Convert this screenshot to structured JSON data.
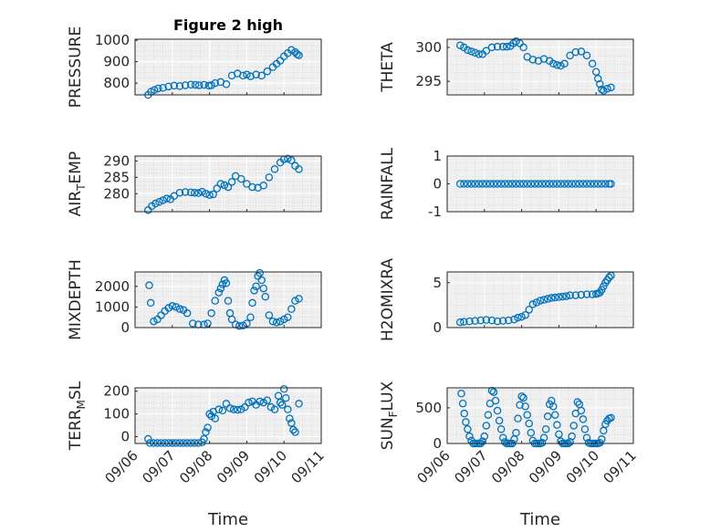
{
  "figure": {
    "title": "Figure 2 high",
    "xlabel": "Time"
  },
  "colors": {
    "marker": "#0072BD",
    "axes_bg": "#F0F0F0",
    "axis": "#262626"
  },
  "chart_data": [
    {
      "type": "scatter",
      "ylabel": "PRESSURE",
      "title": "Figure 2 high",
      "yticks": [
        800,
        900,
        1000
      ],
      "ylim": [
        745,
        1005
      ],
      "xlim": [
        "09/06",
        "09/11"
      ],
      "x_day": [
        0.35,
        0.43,
        0.52,
        0.62,
        0.75,
        0.9,
        1.05,
        1.2,
        1.35,
        1.5,
        1.62,
        1.72,
        1.85,
        1.98,
        2.05,
        2.15,
        2.3,
        2.45,
        2.6,
        2.75,
        2.9,
        3.0,
        3.1,
        3.25,
        3.4,
        3.55,
        3.7,
        3.8,
        3.9,
        4.0,
        4.1,
        4.2,
        4.3,
        4.35,
        4.4
      ],
      "y": [
        745,
        760,
        768,
        775,
        778,
        784,
        788,
        786,
        790,
        793,
        792,
        790,
        792,
        788,
        790,
        800,
        805,
        795,
        835,
        845,
        835,
        840,
        832,
        840,
        835,
        855,
        875,
        890,
        905,
        925,
        940,
        955,
        945,
        935,
        930
      ]
    },
    {
      "type": "scatter",
      "ylabel": "THETA",
      "yticks": [
        295,
        300
      ],
      "ylim": [
        293,
        301.2
      ],
      "xlim": [
        "09/06",
        "09/11"
      ],
      "x_day": [
        0.35,
        0.45,
        0.55,
        0.65,
        0.75,
        0.85,
        0.95,
        1.05,
        1.2,
        1.35,
        1.5,
        1.6,
        1.7,
        1.78,
        1.85,
        1.95,
        2.05,
        2.15,
        2.3,
        2.45,
        2.6,
        2.75,
        2.85,
        2.95,
        3.05,
        3.15,
        3.3,
        3.45,
        3.6,
        3.75,
        3.9,
        4.0,
        4.05,
        4.1,
        4.15,
        4.2,
        4.3,
        4.4
      ],
      "y": [
        300.3,
        300.0,
        299.6,
        299.4,
        299.2,
        299.0,
        299.0,
        299.5,
        300.0,
        300.1,
        300.1,
        300.1,
        300.2,
        300.6,
        300.9,
        300.6,
        300.0,
        298.6,
        298.2,
        298.0,
        298.3,
        298.0,
        297.6,
        297.4,
        297.3,
        297.6,
        298.8,
        299.3,
        299.4,
        298.8,
        297.6,
        296.4,
        295.4,
        294.6,
        293.8,
        293.6,
        293.9,
        294.1
      ]
    },
    {
      "type": "scatter",
      "ylabel": "AIR_TEMP",
      "yticks": [
        280,
        285,
        290
      ],
      "ylim": [
        274.5,
        291.5
      ],
      "xlim": [
        "09/06",
        "09/11"
      ],
      "x_day": [
        0.35,
        0.45,
        0.55,
        0.65,
        0.75,
        0.85,
        0.95,
        1.05,
        1.2,
        1.35,
        1.5,
        1.6,
        1.7,
        1.8,
        1.9,
        2.0,
        2.1,
        2.2,
        2.3,
        2.4,
        2.5,
        2.6,
        2.7,
        2.85,
        3.0,
        3.15,
        3.3,
        3.45,
        3.6,
        3.75,
        3.9,
        4.0,
        4.1,
        4.2,
        4.3,
        4.4
      ],
      "y": [
        275.0,
        276.2,
        277.0,
        277.5,
        278.0,
        278.5,
        278.3,
        279.3,
        280.3,
        280.5,
        280.4,
        280.3,
        280.2,
        280.6,
        280.0,
        279.6,
        279.8,
        281.6,
        283.0,
        282.6,
        282.0,
        283.6,
        285.4,
        284.5,
        283.0,
        282.0,
        281.8,
        282.5,
        285.0,
        287.5,
        289.5,
        290.5,
        290.7,
        290.2,
        288.5,
        287.5
      ]
    },
    {
      "type": "scatter",
      "ylabel": "RAINFALL",
      "yticks": [
        -1,
        0,
        1
      ],
      "ylim": [
        -1,
        1
      ],
      "xlim": [
        "09/06",
        "09/11"
      ],
      "x_day": [
        0.35,
        0.45,
        0.55,
        0.65,
        0.75,
        0.85,
        0.95,
        1.05,
        1.15,
        1.25,
        1.35,
        1.45,
        1.55,
        1.65,
        1.75,
        1.85,
        1.95,
        2.05,
        2.15,
        2.25,
        2.35,
        2.45,
        2.55,
        2.65,
        2.75,
        2.85,
        2.95,
        3.05,
        3.15,
        3.25,
        3.35,
        3.45,
        3.55,
        3.65,
        3.75,
        3.85,
        3.95,
        4.05,
        4.15,
        4.25,
        4.35,
        4.4
      ],
      "y": [
        0,
        0,
        0,
        0,
        0,
        0,
        0,
        0,
        0,
        0,
        0,
        0,
        0,
        0,
        0,
        0,
        0,
        0,
        0,
        0,
        0,
        0,
        0,
        0,
        0,
        0,
        0,
        0,
        0,
        0,
        0,
        0,
        0,
        0,
        0,
        0,
        0,
        0,
        0,
        0,
        0,
        0
      ]
    },
    {
      "type": "scatter",
      "ylabel": "MIXDEPTH",
      "yticks": [
        0,
        1000,
        2000
      ],
      "ylim": [
        0,
        2700
      ],
      "xlim": [
        "09/06",
        "09/11"
      ],
      "x_day": [
        0.38,
        0.42,
        0.5,
        0.6,
        0.7,
        0.8,
        0.9,
        1.0,
        1.1,
        1.2,
        1.3,
        1.4,
        1.55,
        1.7,
        1.85,
        1.95,
        2.05,
        2.15,
        2.25,
        2.3,
        2.35,
        2.4,
        2.45,
        2.5,
        2.55,
        2.6,
        2.7,
        2.8,
        2.9,
        3.0,
        3.1,
        3.15,
        3.2,
        3.25,
        3.3,
        3.35,
        3.4,
        3.45,
        3.5,
        3.6,
        3.7,
        3.8,
        3.9,
        4.0,
        4.1,
        4.2,
        4.3,
        4.4
      ],
      "y": [
        2050,
        1200,
        300,
        400,
        600,
        800,
        950,
        1050,
        1000,
        900,
        850,
        700,
        200,
        150,
        150,
        200,
        700,
        1300,
        1700,
        1900,
        2100,
        2300,
        2150,
        1300,
        700,
        400,
        150,
        80,
        100,
        200,
        500,
        1200,
        1800,
        2000,
        2500,
        2650,
        2300,
        1900,
        1500,
        600,
        300,
        250,
        300,
        400,
        500,
        900,
        1300,
        1400
      ]
    },
    {
      "type": "scatter",
      "ylabel": "H2OMIXRA",
      "yticks": [
        0,
        5
      ],
      "ylim": [
        0,
        6.2
      ],
      "xlim": [
        "09/06",
        "09/11"
      ],
      "x_day": [
        0.35,
        0.45,
        0.6,
        0.75,
        0.9,
        1.05,
        1.2,
        1.35,
        1.5,
        1.65,
        1.8,
        1.9,
        2.0,
        2.1,
        2.2,
        2.3,
        2.4,
        2.5,
        2.6,
        2.7,
        2.8,
        2.9,
        3.0,
        3.1,
        3.2,
        3.3,
        3.45,
        3.6,
        3.75,
        3.9,
        4.0,
        4.05,
        4.1,
        4.15,
        4.2,
        4.25,
        4.3,
        4.35,
        4.4
      ],
      "y": [
        0.6,
        0.65,
        0.7,
        0.75,
        0.8,
        0.85,
        0.8,
        0.7,
        0.75,
        0.8,
        0.9,
        1.1,
        1.2,
        1.4,
        2.0,
        2.6,
        2.8,
        3.0,
        3.1,
        3.2,
        3.3,
        3.35,
        3.4,
        3.45,
        3.5,
        3.6,
        3.6,
        3.65,
        3.7,
        3.7,
        3.75,
        3.8,
        3.9,
        4.2,
        4.6,
        5.0,
        5.3,
        5.6,
        5.8
      ]
    },
    {
      "type": "scatter",
      "ylabel": "TERR_MSL",
      "yticks": [
        0,
        100,
        200
      ],
      "ylim": [
        -30,
        215
      ],
      "xlim": [
        "09/06",
        "09/11"
      ],
      "x_day": [
        0.35,
        0.4,
        0.5,
        0.6,
        0.7,
        0.8,
        0.9,
        1.0,
        1.1,
        1.2,
        1.3,
        1.4,
        1.5,
        1.6,
        1.7,
        1.8,
        1.85,
        1.9,
        1.95,
        2.0,
        2.05,
        2.1,
        2.15,
        2.25,
        2.35,
        2.45,
        2.55,
        2.65,
        2.75,
        2.85,
        2.95,
        3.05,
        3.15,
        3.25,
        3.35,
        3.45,
        3.55,
        3.65,
        3.75,
        3.85,
        3.9,
        3.95,
        4.0,
        4.05,
        4.1,
        4.15,
        4.2,
        4.25,
        4.3,
        4.4
      ],
      "y": [
        -10,
        -28,
        -28,
        -28,
        -28,
        -28,
        -28,
        -28,
        -28,
        -28,
        -28,
        -28,
        -28,
        -28,
        -28,
        -25,
        -10,
        20,
        40,
        100,
        90,
        110,
        80,
        120,
        115,
        145,
        125,
        120,
        118,
        120,
        130,
        150,
        155,
        140,
        155,
        150,
        160,
        130,
        120,
        180,
        150,
        140,
        210,
        170,
        120,
        80,
        60,
        30,
        20,
        145
      ]
    },
    {
      "type": "scatter",
      "ylabel": "SUN_FLUX",
      "yticks": [
        0,
        500
      ],
      "ylim": [
        0,
        780
      ],
      "xlim": [
        "09/06",
        "09/11"
      ],
      "x_day": [
        0.38,
        0.42,
        0.46,
        0.5,
        0.55,
        0.6,
        0.65,
        0.7,
        0.75,
        0.8,
        0.85,
        0.9,
        0.95,
        1.0,
        1.05,
        1.1,
        1.15,
        1.2,
        1.25,
        1.3,
        1.35,
        1.4,
        1.45,
        1.5,
        1.55,
        1.6,
        1.65,
        1.7,
        1.75,
        1.8,
        1.85,
        1.9,
        1.95,
        2.0,
        2.05,
        2.1,
        2.15,
        2.2,
        2.25,
        2.3,
        2.35,
        2.4,
        2.45,
        2.5,
        2.55,
        2.6,
        2.65,
        2.7,
        2.75,
        2.8,
        2.85,
        2.9,
        2.95,
        3.0,
        3.05,
        3.1,
        3.15,
        3.2,
        3.25,
        3.3,
        3.35,
        3.4,
        3.45,
        3.5,
        3.55,
        3.6,
        3.65,
        3.7,
        3.75,
        3.8,
        3.85,
        3.9,
        3.95,
        4.0,
        4.05,
        4.1,
        4.15,
        4.2,
        4.25,
        4.3,
        4.35,
        4.4
      ],
      "y": [
        700,
        560,
        420,
        300,
        200,
        100,
        40,
        0,
        0,
        0,
        0,
        0,
        30,
        100,
        250,
        400,
        560,
        740,
        720,
        600,
        460,
        320,
        200,
        80,
        20,
        0,
        0,
        0,
        0,
        60,
        150,
        350,
        540,
        660,
        640,
        520,
        400,
        280,
        150,
        40,
        0,
        0,
        0,
        0,
        10,
        80,
        200,
        380,
        550,
        600,
        520,
        400,
        260,
        130,
        30,
        0,
        0,
        0,
        0,
        20,
        100,
        250,
        420,
        580,
        550,
        460,
        340,
        200,
        80,
        10,
        0,
        0,
        0,
        0,
        0,
        10,
        60,
        180,
        270,
        320,
        350,
        360
      ]
    }
  ]
}
